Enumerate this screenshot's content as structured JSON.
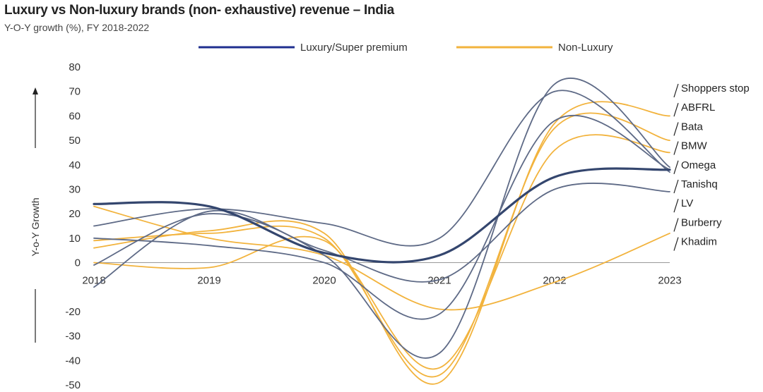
{
  "chart_data": {
    "type": "line",
    "title": "Luxury vs Non-luxury brands (non- exhaustive) revenue – India",
    "subtitle": "Y-O-Y growth (%), FY 2018-2022",
    "ylabel": "Y-o-Y Growth",
    "xlabel": "",
    "x": [
      "2018",
      "2019",
      "2020",
      "2021",
      "2022",
      "2023"
    ],
    "ylim": [
      -50,
      80
    ],
    "yticks": [
      80,
      70,
      60,
      50,
      40,
      30,
      20,
      10,
      0,
      -20,
      -30,
      -40,
      -50
    ],
    "grid": false,
    "legend": [
      {
        "label": "Luxury/Super premium",
        "color": "#1f2f8f"
      },
      {
        "label": "Non-Luxury",
        "color": "#f2b33d"
      }
    ],
    "brand_labels": [
      "Shoppers stop",
      "ABFRL",
      "Bata",
      "BMW",
      "Omega",
      "Tanishq",
      "LV",
      "Burberry",
      "Khadim"
    ],
    "series": [
      {
        "values": [
          24,
          23,
          4,
          3,
          35,
          38
        ],
        "color": "#34466e",
        "width": 3.2
      },
      {
        "values": [
          15,
          22,
          16,
          10,
          70,
          37
        ],
        "color": "#5e6a86",
        "width": 1.8
      },
      {
        "values": [
          10,
          7,
          0,
          -21,
          58,
          38
        ],
        "color": "#5e6a86",
        "width": 1.8
      },
      {
        "values": [
          -1,
          20,
          3,
          -37,
          73,
          39
        ],
        "color": "#5e6a86",
        "width": 1.8
      },
      {
        "values": [
          -10,
          21,
          5,
          -7,
          30,
          29
        ],
        "color": "#5e6a86",
        "width": 1.8
      },
      {
        "values": [
          23,
          10,
          3,
          -19,
          -8,
          12
        ],
        "color": "#f2b33d",
        "width": 1.8
      },
      {
        "values": [
          6,
          13,
          12,
          -49,
          57,
          60
        ],
        "color": "#f2b33d",
        "width": 1.8
      },
      {
        "values": [
          9,
          12,
          10,
          -46,
          55,
          50
        ],
        "color": "#f2b33d",
        "width": 1.8
      },
      {
        "values": [
          0,
          -2,
          9,
          -43,
          46,
          45
        ],
        "color": "#f2b33d",
        "width": 1.8
      }
    ]
  }
}
